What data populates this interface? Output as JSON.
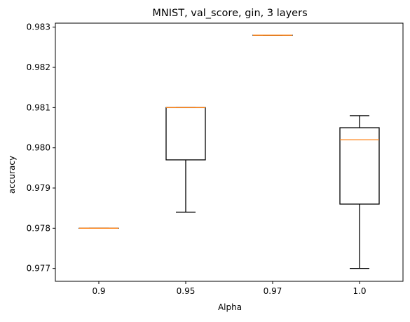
{
  "chart_data": {
    "type": "box",
    "title": "MNIST, val_score, gin, 3 layers",
    "xlabel": "Alpha",
    "ylabel": "accuracy",
    "categories": [
      "0.9",
      "0.95",
      "0.97",
      "1.0"
    ],
    "ylim": [
      0.97668,
      0.9831
    ],
    "yticks": [
      0.977,
      0.978,
      0.979,
      0.98,
      0.981,
      0.982,
      0.983
    ],
    "ytick_labels": [
      "0.977",
      "0.978",
      "0.979",
      "0.980",
      "0.981",
      "0.982",
      "0.983"
    ],
    "boxes": [
      {
        "category": "0.9",
        "whisker_low": 0.978,
        "q1": 0.978,
        "median": 0.978,
        "q3": 0.978,
        "whisker_high": 0.978
      },
      {
        "category": "0.95",
        "whisker_low": 0.9784,
        "q1": 0.9797,
        "median": 0.981,
        "q3": 0.981,
        "whisker_high": 0.981
      },
      {
        "category": "0.97",
        "whisker_low": 0.9828,
        "q1": 0.9828,
        "median": 0.9828,
        "q3": 0.9828,
        "whisker_high": 0.9828
      },
      {
        "category": "1.0",
        "whisker_low": 0.977,
        "q1": 0.9786,
        "median": 0.9802,
        "q3": 0.9805,
        "whisker_high": 0.9808
      }
    ],
    "grid": false,
    "colors": {
      "box": "#000000",
      "median": "#ff7f0e",
      "axes": "#000000"
    }
  }
}
